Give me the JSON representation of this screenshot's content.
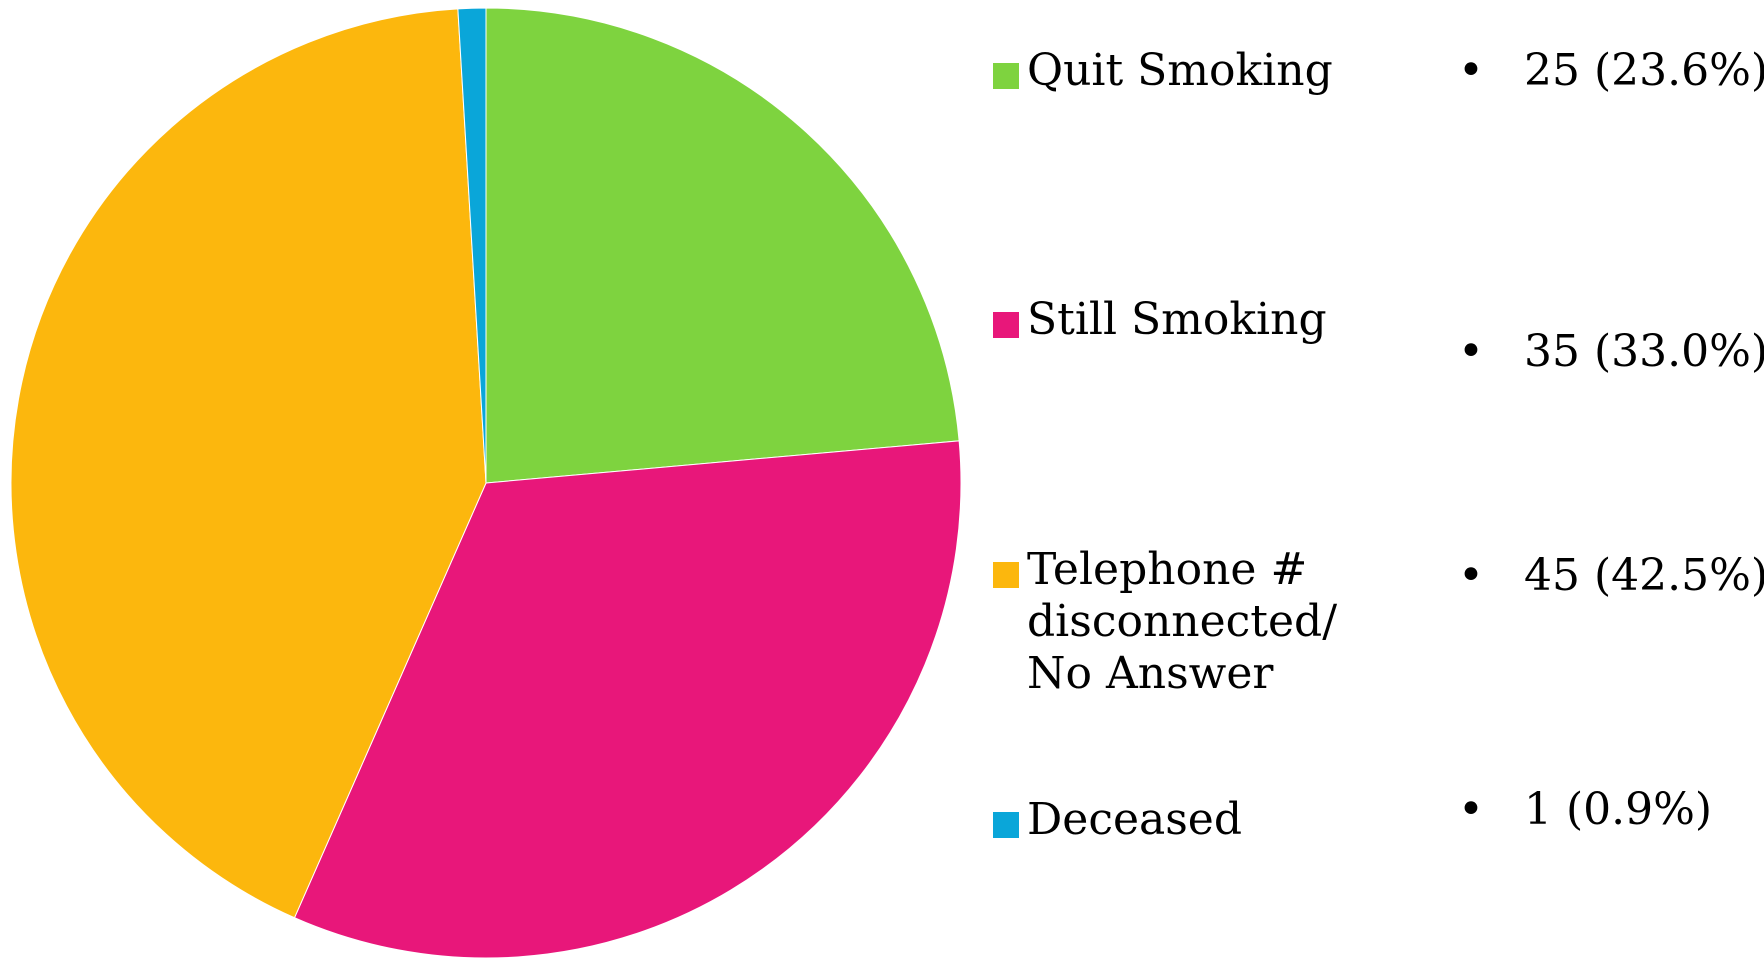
{
  "chart_data": {
    "type": "pie",
    "slices": [
      {
        "label": "Quit Smoking",
        "value": 25,
        "display": "25 (23.6%)",
        "color": "#7ed33f"
      },
      {
        "label": "Still Smoking",
        "value": 35,
        "display": "35 (33.0%)",
        "color": "#e8177a"
      },
      {
        "label": "Telephone # disconnected/ No Answer",
        "value": 45,
        "display": "45 (42.5%)",
        "color": "#fcb70d"
      },
      {
        "label": "Deceased",
        "value": 1,
        "display": "1 (0.9%)",
        "color": "#0aa6d9"
      }
    ],
    "start_angle": "12 o'clock",
    "direction": "clockwise",
    "legend_position": "right"
  }
}
